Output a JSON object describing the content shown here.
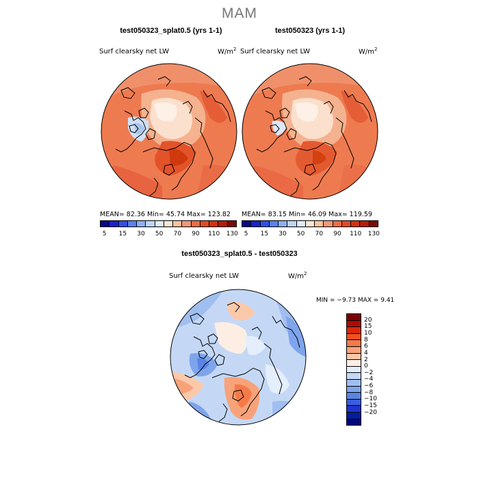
{
  "season": "MAM",
  "panels": {
    "left": {
      "title": "test050323_splat0.5 (yrs 1-1)",
      "variable": "Surf clearsky net LW",
      "units": "W/m",
      "units_sup": "2",
      "stats": "MEAN=  82.36  Min=  45.74  Max= 123.82"
    },
    "right": {
      "title": "test050323 (yrs 1-1)",
      "variable": "Surf clearsky net LW",
      "units": "W/m",
      "units_sup": "2",
      "stats": "MEAN=  83.15  Min=  46.09  Max= 119.59"
    },
    "diff": {
      "title": "test050323_splat0.5 - test050323",
      "variable": "Surf clearsky net LW",
      "units": "W/m",
      "units_sup": "2",
      "minmax": "MIN =  −9.73 MAX =   9.41"
    }
  },
  "colorbar_abs": {
    "colors": [
      "#08088c",
      "#1a22c8",
      "#3050e6",
      "#5a82f0",
      "#8cb0f5",
      "#bcd6fa",
      "#e0ecfb",
      "#fbe6d6",
      "#f9c3a0",
      "#f29878",
      "#ea6c48",
      "#e24a24",
      "#d2320e",
      "#b21e0a",
      "#7c0a06"
    ],
    "tick_labels": [
      "5",
      "15",
      "30",
      "50",
      "70",
      "90",
      "110",
      "130"
    ]
  },
  "colorbar_diff": {
    "colors": [
      "#7c0000",
      "#b00a00",
      "#d8280c",
      "#f2501e",
      "#f57a48",
      "#f8a27a",
      "#fbc9aa",
      "#fdeee4",
      "#e4eefc",
      "#c4d8f6",
      "#a0bff0",
      "#7ea4ec",
      "#5a84e6",
      "#3a5ede",
      "#1e34cc",
      "#001ea0",
      "#00067c"
    ],
    "tick_labels": [
      "20",
      "15",
      "10",
      "8",
      "6",
      "4",
      "2",
      "0",
      "−2",
      "−4",
      "−6",
      "−8",
      "−10",
      "−15",
      "−20"
    ]
  }
}
